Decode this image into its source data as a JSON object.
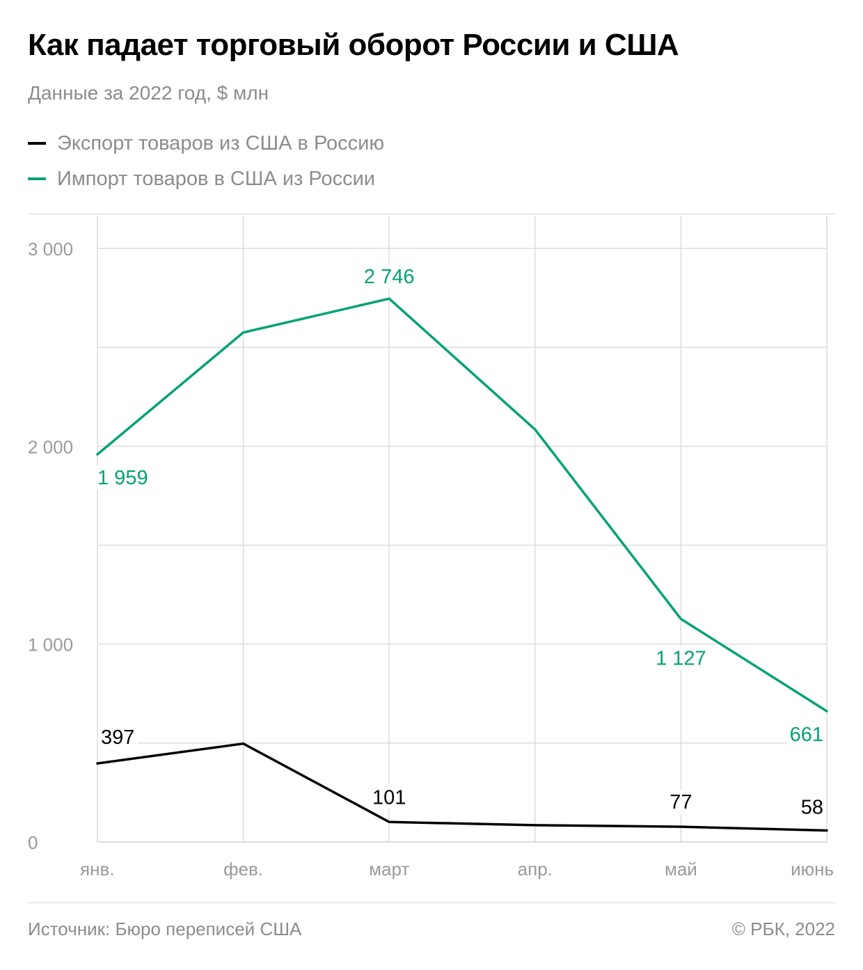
{
  "title": "Как падает торговый оборот России и США",
  "subtitle": "Данные за 2022 год, $ млн",
  "colors": {
    "export": "#000000",
    "import": "#00a276",
    "grid": "#dcdcdc",
    "axis_text": "#9a9a9a"
  },
  "footer": {
    "source": "Источник: Бюро переписей США",
    "copyright": "© РБК, 2022"
  },
  "chart_data": {
    "type": "line",
    "categories": [
      "янв.",
      "фев.",
      "март",
      "апр.",
      "май",
      "июнь"
    ],
    "ylim": [
      0,
      3000
    ],
    "yticks": [
      0,
      1000,
      2000,
      3000
    ],
    "ytick_labels": [
      "0",
      "1 000",
      "2 000",
      "3 000"
    ],
    "grid": true,
    "legend_position": "top-left",
    "series": [
      {
        "key": "export",
        "name": "Экспорт товаров из США в Россию",
        "color": "#000000",
        "values": [
          397,
          497,
          101,
          85,
          77,
          58
        ],
        "labels": [
          "397",
          "",
          "101",
          "",
          "77",
          "58"
        ]
      },
      {
        "key": "import",
        "name": "Импорт товаров в США из России",
        "color": "#00a276",
        "values": [
          1959,
          2575,
          2746,
          2085,
          1127,
          661
        ],
        "labels": [
          "1 959",
          "",
          "2 746",
          "",
          "1 127",
          "661"
        ]
      }
    ]
  }
}
